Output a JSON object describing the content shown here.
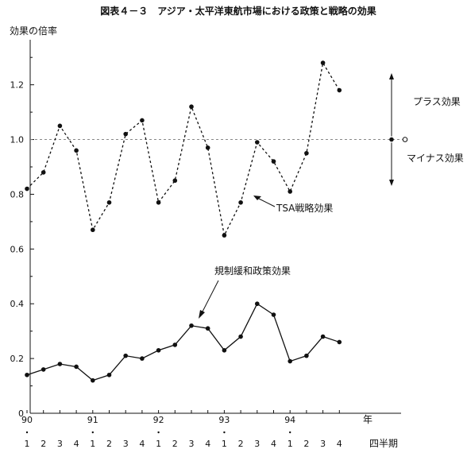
{
  "chart_data": {
    "type": "line",
    "title": "図表４－３　アジア・太平洋東航市場における政策と戦略の効果",
    "ylabel": "効果の倍率",
    "xlabel": "四半期",
    "year_label": "年",
    "ylim": [
      0,
      1.35
    ],
    "yticks": [
      "0",
      "0.2",
      "0.4",
      "0.6",
      "0.8",
      "1.0",
      "1.2"
    ],
    "years": [
      "90",
      "91",
      "92",
      "93",
      "94"
    ],
    "quarters": [
      "1",
      "2",
      "3",
      "4",
      "1",
      "2",
      "3",
      "4",
      "1",
      "2",
      "3",
      "4",
      "1",
      "2",
      "3",
      "4",
      "1",
      "2",
      "3",
      "4"
    ],
    "reference_line": 1.0,
    "grid": false,
    "annotations": {
      "plus": "プラス効果",
      "minus": "マイナス効果",
      "tsa": "TSA戦略効果",
      "reg": "規制緩和政策効果"
    },
    "series": [
      {
        "name": "TSA戦略効果",
        "style": "dashed",
        "values": [
          0.82,
          0.88,
          1.05,
          0.96,
          0.67,
          0.77,
          1.02,
          1.07,
          0.77,
          0.85,
          1.12,
          0.97,
          0.65,
          0.77,
          0.99,
          0.92,
          0.81,
          0.95,
          1.28,
          1.18
        ]
      },
      {
        "name": "規制緩和政策効果",
        "style": "solid",
        "values": [
          0.14,
          0.16,
          0.18,
          0.17,
          0.12,
          0.14,
          0.21,
          0.2,
          0.23,
          0.25,
          0.32,
          0.31,
          0.23,
          0.28,
          0.4,
          0.36,
          0.19,
          0.21,
          0.28,
          0.26
        ]
      }
    ]
  }
}
